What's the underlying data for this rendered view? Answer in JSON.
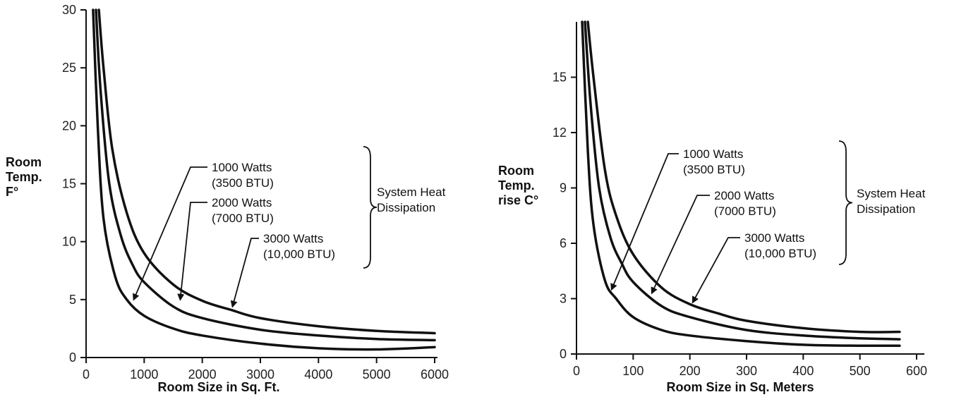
{
  "chart_data": [
    {
      "type": "line",
      "xlabel": "Room Size in Sq. Ft.",
      "ylabel": [
        "Room",
        "Temp.",
        "F°"
      ],
      "xlim": [
        0,
        6000
      ],
      "ylim": [
        0,
        30
      ],
      "xticks": [
        0,
        1000,
        2000,
        3000,
        4000,
        5000,
        6000
      ],
      "yticks": [
        0,
        5,
        10,
        15,
        20,
        25,
        30
      ],
      "grid": false,
      "series": [
        {
          "name": "1000 Watts (3500 BTU)",
          "x": [
            120,
            200,
            300,
            500,
            700,
            1000,
            1500,
            2000,
            3000,
            4000,
            5000,
            6000
          ],
          "y": [
            30,
            20,
            12,
            7,
            5,
            3.6,
            2.5,
            1.9,
            1.2,
            0.8,
            0.7,
            0.9
          ]
        },
        {
          "name": "2000 Watts (7000 BTU)",
          "x": [
            170,
            250,
            400,
            600,
            800,
            1000,
            1500,
            2000,
            3000,
            4000,
            5000,
            6000
          ],
          "y": [
            30,
            23,
            15,
            10.5,
            8,
            6.5,
            4.4,
            3.4,
            2.4,
            1.9,
            1.6,
            1.5
          ]
        },
        {
          "name": "3000 Watts (10,000 BTU)",
          "x": [
            220,
            300,
            450,
            700,
            1000,
            1500,
            2000,
            2500,
            3000,
            4000,
            5000,
            6000
          ],
          "y": [
            30,
            25,
            18,
            12.5,
            9,
            6.3,
            4.9,
            4.1,
            3.4,
            2.7,
            2.3,
            2.1
          ]
        }
      ],
      "annotations": [
        {
          "lines": [
            "1000 Watts",
            "(3500 BTU)"
          ],
          "points_to": [
            820,
            5
          ]
        },
        {
          "lines": [
            "2000 Watts",
            "(7000 BTU)"
          ],
          "points_to": [
            1620,
            5
          ]
        },
        {
          "lines": [
            "3000 Watts",
            "(10,000 BTU)"
          ],
          "points_to": [
            2520,
            4.4
          ]
        }
      ],
      "brace_label": [
        "System Heat",
        "Dissipation"
      ]
    },
    {
      "type": "line",
      "xlabel": "Room Size in Sq. Meters",
      "ylabel": [
        "Room",
        "Temp.",
        "rise C°"
      ],
      "xlim": [
        0,
        600
      ],
      "ylim": [
        0,
        18
      ],
      "xticks": [
        0,
        100,
        200,
        300,
        400,
        500,
        600
      ],
      "yticks": [
        0,
        3,
        6,
        9,
        12,
        15
      ],
      "grid": false,
      "series": [
        {
          "name": "1000 Watts (3500 BTU)",
          "x": [
            10,
            20,
            30,
            50,
            70,
            100,
            150,
            200,
            300,
            400,
            500,
            570
          ],
          "y": [
            18,
            11,
            7,
            4,
            3,
            2,
            1.3,
            1,
            0.7,
            0.5,
            0.45,
            0.45
          ]
        },
        {
          "name": "2000 Watts (7000 BTU)",
          "x": [
            15,
            25,
            40,
            60,
            80,
            100,
            150,
            200,
            300,
            400,
            500,
            570
          ],
          "y": [
            18,
            13.5,
            9,
            6.3,
            4.9,
            3.9,
            2.6,
            2,
            1.3,
            1,
            0.85,
            0.8
          ]
        },
        {
          "name": "3000 Watts (10,000 BTU)",
          "x": [
            20,
            30,
            50,
            70,
            100,
            150,
            200,
            250,
            300,
            400,
            500,
            570
          ],
          "y": [
            18,
            15,
            10,
            7.5,
            5.4,
            3.6,
            2.7,
            2.2,
            1.8,
            1.4,
            1.2,
            1.2
          ]
        }
      ],
      "annotations": [
        {
          "lines": [
            "1000 Watts",
            "(3500 BTU)"
          ],
          "points_to": [
            62,
            3.5
          ]
        },
        {
          "lines": [
            "2000 Watts",
            "(7000 BTU)"
          ],
          "points_to": [
            133,
            3.3
          ]
        },
        {
          "lines": [
            "3000 Watts",
            "(10,000 BTU)"
          ],
          "points_to": [
            205,
            2.8
          ]
        }
      ],
      "brace_label": [
        "System Heat",
        "Dissipation"
      ]
    }
  ]
}
